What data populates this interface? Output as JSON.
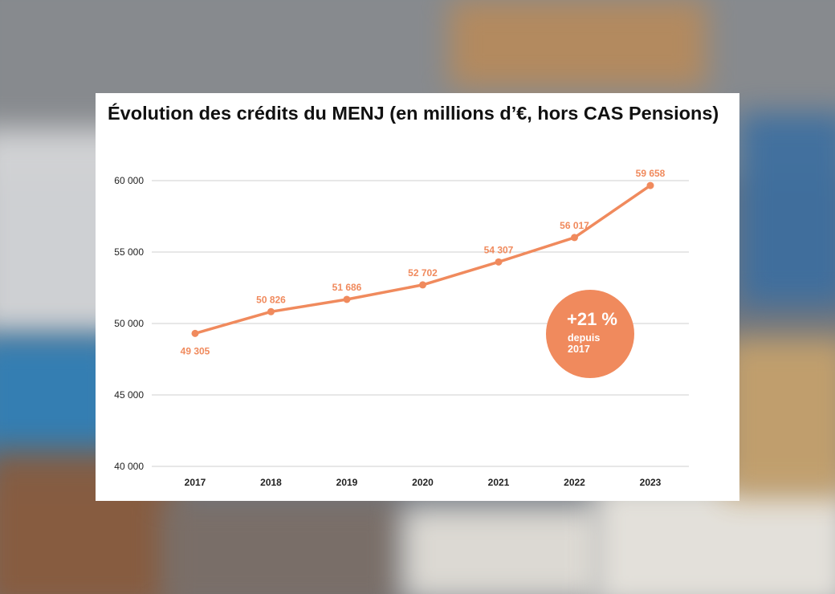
{
  "colors": {
    "accent": "#f08a5d",
    "badge": "#f08a5d",
    "grid": "#cfcfcf",
    "card": "#ffffff"
  },
  "chart_data": {
    "type": "line",
    "title": "Évolution des crédits du MENJ (en millions d’€, hors CAS Pensions)",
    "categories": [
      "2017",
      "2018",
      "2019",
      "2020",
      "2021",
      "2022",
      "2023"
    ],
    "values": [
      49305,
      50826,
      51686,
      52702,
      54307,
      56017,
      59658
    ],
    "data_labels": [
      "49 305",
      "50 826",
      "51 686",
      "52 702",
      "54 307",
      "56 017",
      "59 658"
    ],
    "ylim": [
      40000,
      60000
    ],
    "yticks": [
      40000,
      45000,
      50000,
      55000,
      60000
    ],
    "ytick_labels": [
      "40 000",
      "45 000",
      "50 000",
      "55 000",
      "60 000"
    ],
    "grid": true,
    "annotation": {
      "value": "+21 %",
      "text": "depuis 2017"
    }
  }
}
